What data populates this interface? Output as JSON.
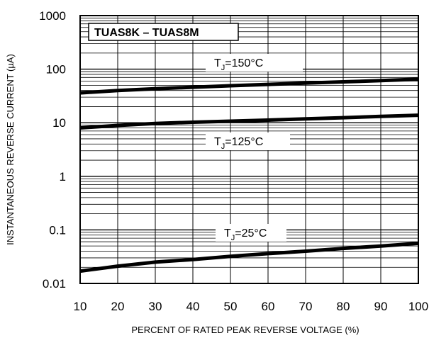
{
  "chart_data": {
    "type": "line",
    "title": "TUAS8K – TUAS8M",
    "xlabel": "PERCENT OF RATED PEAK REVERSE VOLTAGE (%)",
    "ylabel": "INSTANTANEOUS REVERSE CURRENT (µA)",
    "xlim": [
      10,
      100
    ],
    "ylim": [
      0.01,
      1000
    ],
    "yscale": "log",
    "grid": true,
    "x_ticks": [
      "10",
      "20",
      "30",
      "40",
      "50",
      "60",
      "70",
      "80",
      "90",
      "100"
    ],
    "y_ticks": [
      "0.01",
      "0.1",
      "1",
      "10",
      "100",
      "1000"
    ],
    "series": [
      {
        "name": "150",
        "label": {
          "pre": "T",
          "sub": "J",
          "post": "=150°C"
        },
        "x": [
          10,
          20,
          30,
          40,
          50,
          60,
          70,
          80,
          90,
          100
        ],
        "y": [
          36,
          40,
          43,
          46,
          49,
          52,
          55,
          58,
          61,
          65
        ]
      },
      {
        "name": "125",
        "label": {
          "pre": "T",
          "sub": "J",
          "post": "=125°C"
        },
        "x": [
          10,
          20,
          30,
          40,
          50,
          60,
          70,
          80,
          90,
          100
        ],
        "y": [
          8.0,
          8.9,
          9.7,
          10.2,
          10.7,
          11.2,
          11.8,
          12.4,
          13.1,
          13.8
        ]
      },
      {
        "name": "25",
        "label": {
          "pre": "T",
          "sub": "J",
          "post": "=25°C"
        },
        "x": [
          10,
          20,
          30,
          40,
          50,
          60,
          70,
          80,
          90,
          100
        ],
        "y": [
          0.017,
          0.021,
          0.025,
          0.028,
          0.032,
          0.036,
          0.04,
          0.045,
          0.05,
          0.056
        ]
      }
    ]
  }
}
